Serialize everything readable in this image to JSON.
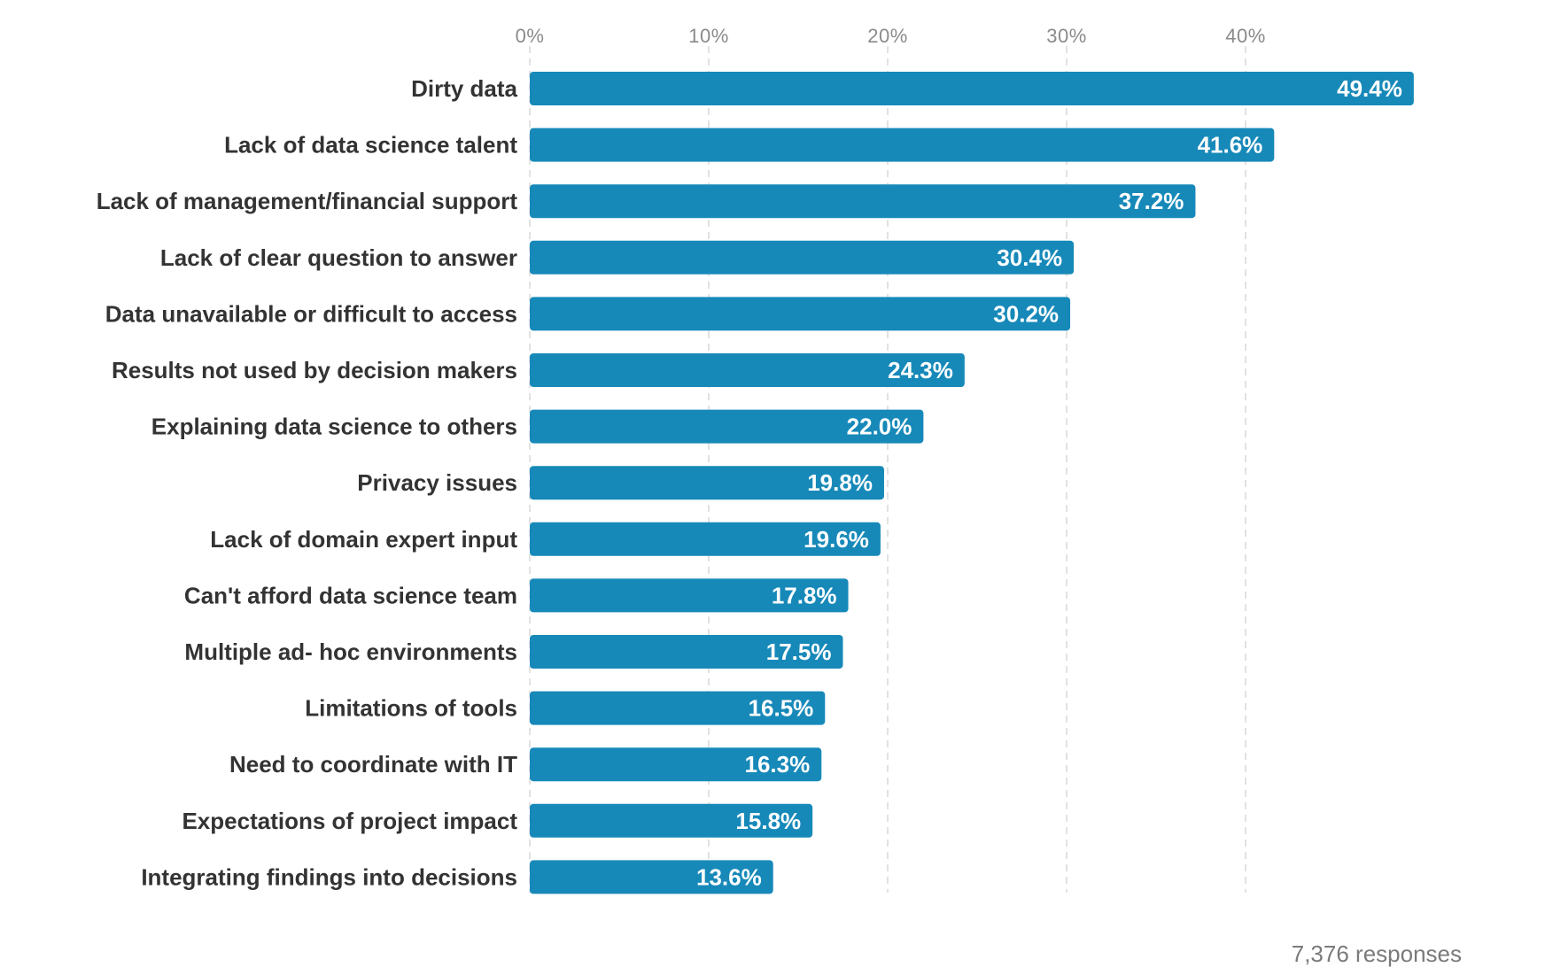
{
  "chart_data": {
    "type": "bar",
    "orientation": "horizontal",
    "categories": [
      "Dirty data",
      "Lack of data science talent",
      "Lack of management/financial support",
      "Lack of clear question to answer",
      "Data unavailable or difficult to access",
      "Results not used by decision makers",
      "Explaining data science to others",
      "Privacy issues",
      "Lack of domain expert input",
      "Can't afford data science team",
      "Multiple ad- hoc environments",
      "Limitations of tools",
      "Need to coordinate with IT",
      "Expectations of project impact",
      "Integrating findings into decisions"
    ],
    "values": [
      49.4,
      41.6,
      37.2,
      30.4,
      30.2,
      24.3,
      22.0,
      19.8,
      19.6,
      17.8,
      17.5,
      16.5,
      16.3,
      15.8,
      13.6
    ],
    "value_labels": [
      "49.4%",
      "41.6%",
      "37.2%",
      "30.4%",
      "30.2%",
      "24.3%",
      "22.0%",
      "19.8%",
      "19.6%",
      "17.8%",
      "17.5%",
      "16.5%",
      "16.3%",
      "15.8%",
      "13.6%"
    ],
    "x_ticks": [
      0,
      10,
      20,
      30,
      40
    ],
    "x_tick_labels": [
      "0%",
      "10%",
      "20%",
      "30%",
      "40%"
    ],
    "xlim": [
      0,
      50
    ],
    "x_axis_position": "top",
    "grid": true,
    "bar_color": "#1789b9",
    "title": "",
    "xlabel": "",
    "ylabel": ""
  },
  "footnote": "7,376 responses"
}
